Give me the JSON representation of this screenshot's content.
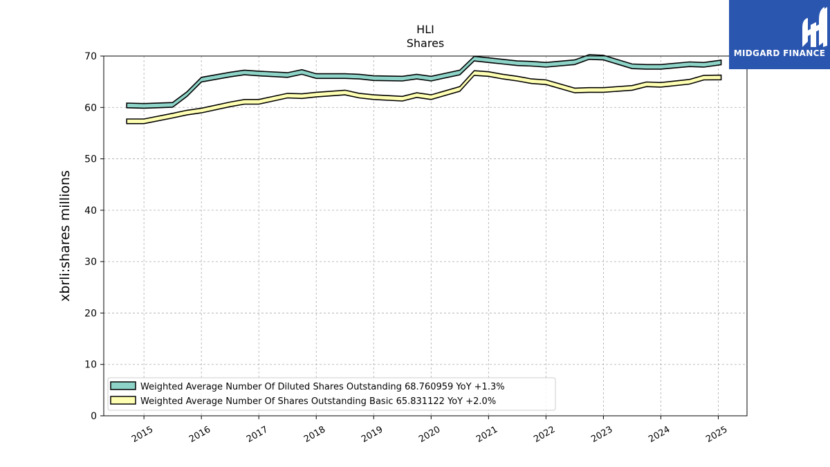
{
  "chart_data": {
    "type": "area",
    "title": "HLI",
    "subtitle": "Shares",
    "ylabel": "xbrli:shares millions",
    "xlabel": "",
    "ylim": [
      0,
      70
    ],
    "xlim": [
      2014.3,
      2025.5
    ],
    "yticks": [
      0,
      10,
      20,
      30,
      40,
      50,
      60,
      70
    ],
    "xticks": [
      2015,
      2016,
      2017,
      2018,
      2019,
      2020,
      2021,
      2022,
      2023,
      2024,
      2025
    ],
    "grid": true,
    "legend_position": "lower-left",
    "series": [
      {
        "name": "Weighted Average Number Of Diluted Shares Outstanding",
        "legend_label": "Weighted Average Number Of Diluted Shares Outstanding  68.760959 YoY +1.3%",
        "color": "#8dd3c7",
        "x": [
          2014.7,
          2015.0,
          2015.5,
          2015.75,
          2016.0,
          2016.5,
          2016.75,
          2017.0,
          2017.5,
          2017.75,
          2018.0,
          2018.5,
          2018.75,
          2019.0,
          2019.5,
          2019.75,
          2020.0,
          2020.5,
          2020.75,
          2021.0,
          2021.25,
          2021.5,
          2021.75,
          2022.0,
          2022.5,
          2022.75,
          2023.0,
          2023.5,
          2023.75,
          2024.0,
          2024.5,
          2024.75,
          2025.05
        ],
        "values": [
          60.4,
          60.3,
          60.5,
          62.6,
          65.4,
          66.4,
          66.8,
          66.6,
          66.3,
          66.9,
          66.1,
          66.1,
          66.0,
          65.7,
          65.6,
          66.0,
          65.6,
          66.8,
          69.5,
          69.2,
          68.9,
          68.6,
          68.5,
          68.3,
          68.8,
          69.8,
          69.7,
          68.0,
          67.9,
          67.9,
          68.4,
          68.3,
          68.76
        ]
      },
      {
        "name": "Weighted Average Number Of Shares Outstanding Basic",
        "legend_label": "Weighted Average Number Of Shares Outstanding Basic  65.831122 YoY +2.0%",
        "color": "#ffffb3",
        "x": [
          2014.7,
          2015.0,
          2015.5,
          2015.75,
          2016.0,
          2016.5,
          2016.75,
          2017.0,
          2017.5,
          2017.75,
          2018.0,
          2018.5,
          2018.75,
          2019.0,
          2019.5,
          2019.75,
          2020.0,
          2020.5,
          2020.75,
          2021.0,
          2021.25,
          2021.5,
          2021.75,
          2022.0,
          2022.5,
          2022.75,
          2023.0,
          2023.5,
          2023.75,
          2024.0,
          2024.5,
          2024.75,
          2025.05
        ],
        "values": [
          57.3,
          57.3,
          58.4,
          59.0,
          59.4,
          60.6,
          61.1,
          61.1,
          62.3,
          62.2,
          62.5,
          62.9,
          62.3,
          62.0,
          61.7,
          62.4,
          62.0,
          63.6,
          66.7,
          66.5,
          66.0,
          65.6,
          65.1,
          64.9,
          63.3,
          63.4,
          63.4,
          63.8,
          64.5,
          64.4,
          65.0,
          65.8,
          65.83
        ]
      }
    ]
  },
  "logo": {
    "text": "MIDGARD FINANCE",
    "background": "#2a56b0"
  }
}
